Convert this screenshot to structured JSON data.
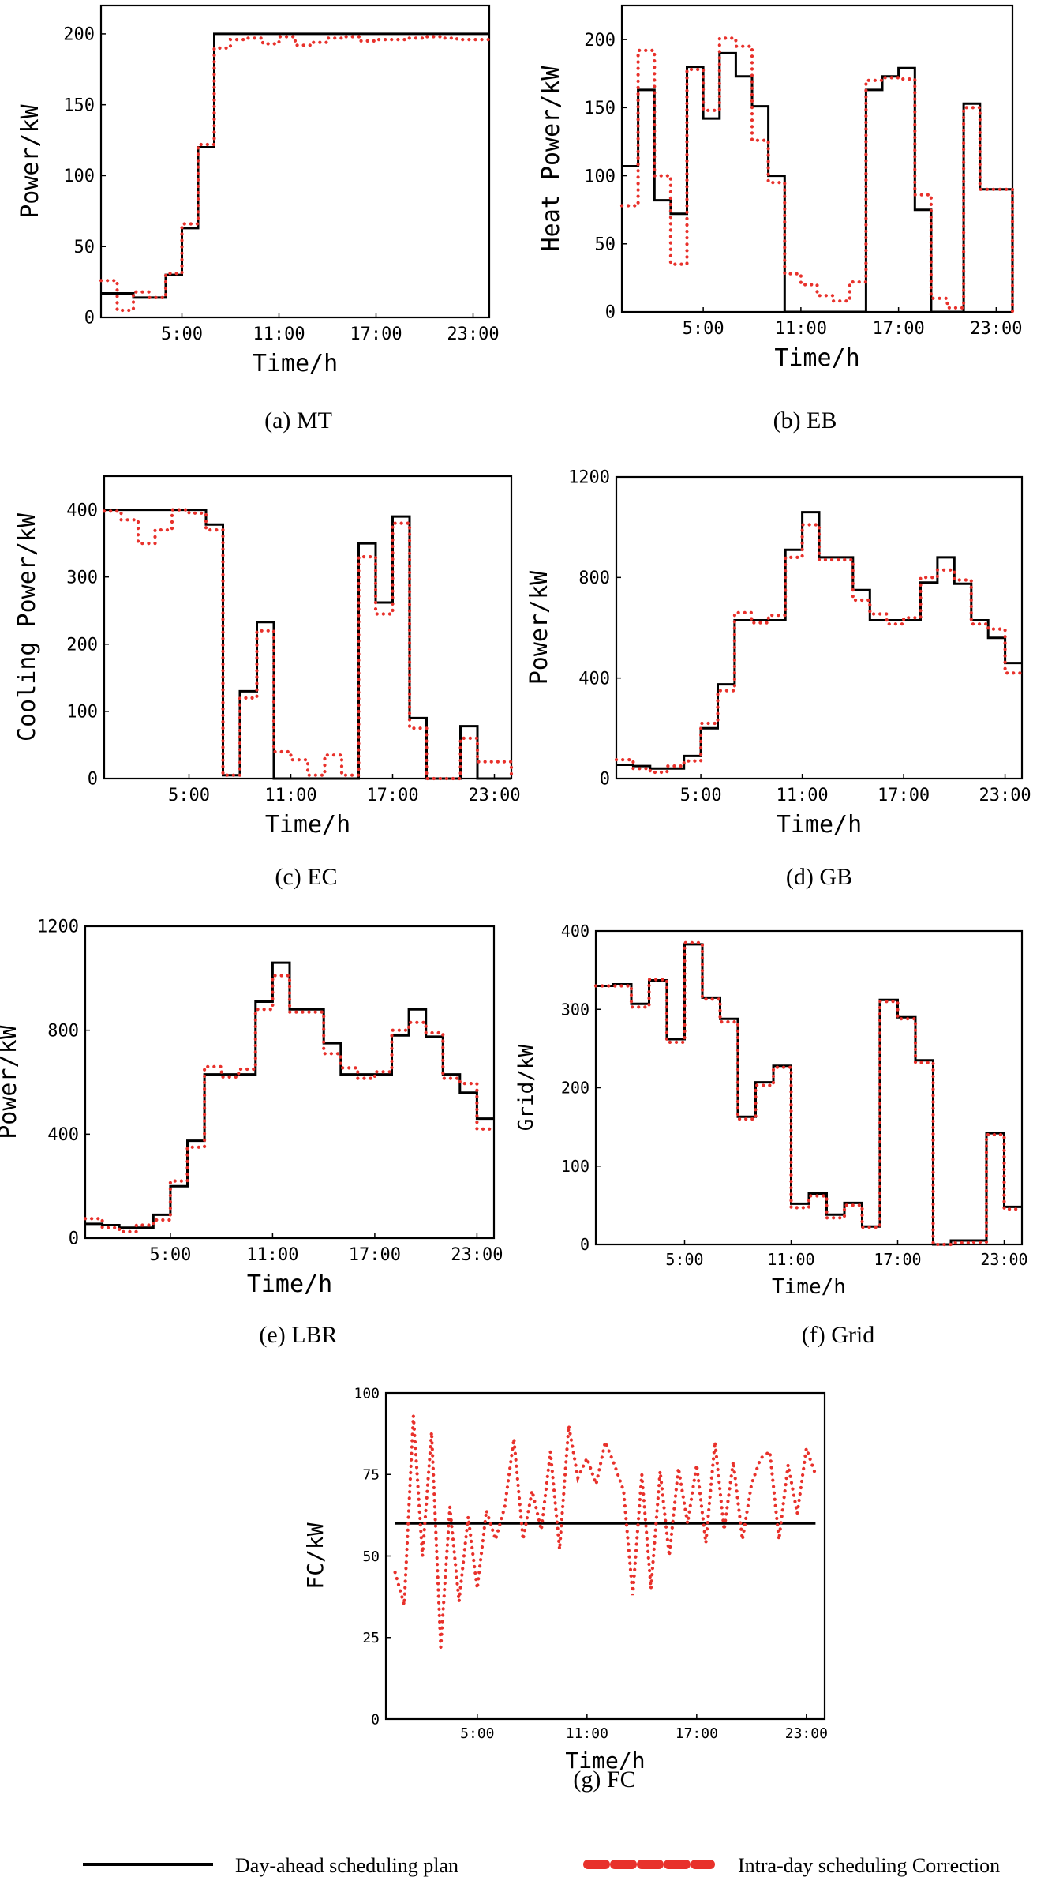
{
  "legend": {
    "plan": "Day-ahead scheduling plan",
    "correction": "Intra-day scheduling Correction"
  },
  "colors": {
    "plan": "#000000",
    "correction": "#e8312b"
  },
  "chart_data": [
    {
      "type": "line",
      "id": "a",
      "caption": "(a) MT",
      "xlabel": "Time/h",
      "ylabel": "Power/kW",
      "xlim": [
        0,
        24
      ],
      "ylim": [
        0,
        220
      ],
      "xticks": [
        5,
        11,
        17,
        23
      ],
      "xticklabels": [
        "5:00",
        "11:00",
        "17:00",
        "23:00"
      ],
      "yticks": [
        0,
        50,
        100,
        150,
        200
      ],
      "yticklabels": [
        "0",
        "50",
        "100",
        "150",
        "200"
      ],
      "series": [
        {
          "name": "Day-ahead scheduling plan",
          "values": [
            17,
            17,
            14,
            14,
            30,
            63,
            120,
            200,
            200,
            200,
            200,
            200,
            200,
            200,
            200,
            200,
            200,
            200,
            200,
            200,
            200,
            200,
            200,
            200
          ]
        },
        {
          "name": "Intra-day scheduling Correction",
          "values": [
            26,
            5,
            18,
            14,
            31,
            66,
            122,
            190,
            196,
            197,
            193,
            198,
            192,
            194,
            197,
            198,
            195,
            196,
            196,
            197,
            198,
            197,
            196,
            196
          ]
        }
      ]
    },
    {
      "type": "line",
      "id": "b",
      "caption": "(b) EB",
      "xlabel": "Time/h",
      "ylabel": "Heat Power/kW",
      "xlim": [
        0,
        24
      ],
      "ylim": [
        0,
        225
      ],
      "xticks": [
        5,
        11,
        17,
        23
      ],
      "xticklabels": [
        "5:00",
        "11:00",
        "17:00",
        "23:00"
      ],
      "yticks": [
        0,
        50,
        100,
        150,
        200
      ],
      "yticklabels": [
        "0",
        "50",
        "100",
        "150",
        "200"
      ],
      "series": [
        {
          "name": "Day-ahead scheduling plan",
          "values": [
            107,
            163,
            82,
            72,
            180,
            142,
            190,
            173,
            151,
            100,
            0,
            0,
            0,
            0,
            0,
            163,
            173,
            179,
            75,
            0,
            0,
            153,
            90,
            90
          ]
        },
        {
          "name": "Intra-day scheduling Correction",
          "values": [
            78,
            192,
            100,
            35,
            178,
            148,
            201,
            195,
            126,
            95,
            28,
            20,
            12,
            8,
            22,
            170,
            172,
            171,
            86,
            10,
            3,
            150,
            90,
            90
          ]
        }
      ]
    },
    {
      "type": "line",
      "id": "c",
      "caption": "(c) EC",
      "xlabel": "Time/h",
      "ylabel": "Cooling Power/kW",
      "xlim": [
        0,
        24
      ],
      "ylim": [
        0,
        450
      ],
      "xticks": [
        5,
        11,
        17,
        23
      ],
      "xticklabels": [
        "5:00",
        "11:00",
        "17:00",
        "23:00"
      ],
      "yticks": [
        0,
        100,
        200,
        300,
        400
      ],
      "yticklabels": [
        "0",
        "100",
        "200",
        "300",
        "400"
      ],
      "series": [
        {
          "name": "Day-ahead scheduling plan",
          "values": [
            400,
            400,
            400,
            400,
            400,
            400,
            378,
            5,
            130,
            233,
            0,
            0,
            0,
            0,
            0,
            350,
            262,
            390,
            90,
            0,
            0,
            78,
            0,
            0
          ]
        },
        {
          "name": "Intra-day scheduling Correction",
          "values": [
            398,
            385,
            350,
            370,
            400,
            395,
            370,
            5,
            120,
            220,
            40,
            28,
            5,
            35,
            5,
            330,
            245,
            380,
            75,
            0,
            0,
            60,
            25,
            25
          ]
        }
      ]
    },
    {
      "type": "line",
      "id": "d",
      "caption": "(d) GB",
      "xlabel": "Time/h",
      "ylabel": "Power/kW",
      "xlim": [
        0,
        24
      ],
      "ylim": [
        0,
        1200
      ],
      "xticks": [
        5,
        11,
        17,
        23
      ],
      "xticklabels": [
        "5:00",
        "11:00",
        "17:00",
        "23:00"
      ],
      "yticks": [
        0,
        400,
        800,
        1200
      ],
      "yticklabels": [
        "0",
        "400",
        "800",
        "1200"
      ],
      "series": [
        {
          "name": "Day-ahead scheduling plan",
          "values": [
            55,
            50,
            40,
            40,
            90,
            200,
            375,
            630,
            630,
            630,
            910,
            1060,
            880,
            880,
            750,
            630,
            630,
            630,
            780,
            880,
            775,
            630,
            560,
            460
          ]
        },
        {
          "name": "Intra-day scheduling Correction",
          "values": [
            75,
            40,
            25,
            50,
            70,
            220,
            350,
            660,
            620,
            650,
            880,
            1010,
            870,
            870,
            710,
            655,
            615,
            640,
            800,
            830,
            790,
            615,
            595,
            420
          ]
        }
      ]
    },
    {
      "type": "line",
      "id": "e",
      "caption": "(e) LBR",
      "xlabel": "Time/h",
      "ylabel": "Power/kW",
      "xlim": [
        0,
        24
      ],
      "ylim": [
        0,
        1200
      ],
      "xticks": [
        5,
        11,
        17,
        23
      ],
      "xticklabels": [
        "5:00",
        "11:00",
        "17:00",
        "23:00"
      ],
      "yticks": [
        0,
        400,
        800,
        1200
      ],
      "yticklabels": [
        "0",
        "400",
        "800",
        "1200"
      ],
      "series": [
        {
          "name": "Day-ahead scheduling plan",
          "values": [
            55,
            50,
            40,
            40,
            90,
            200,
            375,
            630,
            630,
            630,
            910,
            1060,
            880,
            880,
            750,
            630,
            630,
            630,
            780,
            880,
            775,
            630,
            560,
            460
          ]
        },
        {
          "name": "Intra-day scheduling Correction",
          "values": [
            75,
            40,
            25,
            50,
            70,
            220,
            350,
            660,
            620,
            650,
            880,
            1010,
            870,
            870,
            710,
            655,
            615,
            640,
            800,
            830,
            790,
            615,
            595,
            420
          ]
        }
      ]
    },
    {
      "type": "line",
      "id": "f",
      "caption": "(f) Grid",
      "xlabel": "Time/h",
      "ylabel": "Grid/kW",
      "xlim": [
        0,
        24
      ],
      "ylim": [
        0,
        400
      ],
      "xticks": [
        5,
        11,
        17,
        23
      ],
      "xticklabels": [
        "5:00",
        "11:00",
        "17:00",
        "23:00"
      ],
      "yticks": [
        0,
        100,
        200,
        300,
        400
      ],
      "yticklabels": [
        "0",
        "100",
        "200",
        "300",
        "400"
      ],
      "series": [
        {
          "name": "Day-ahead scheduling plan",
          "values": [
            330,
            332,
            307,
            337,
            262,
            383,
            315,
            288,
            163,
            207,
            228,
            52,
            65,
            38,
            53,
            23,
            312,
            290,
            235,
            0,
            5,
            5,
            142,
            48
          ]
        },
        {
          "name": "Intra-day scheduling Correction",
          "values": [
            330,
            330,
            303,
            338,
            258,
            385,
            313,
            284,
            160,
            203,
            226,
            47,
            62,
            34,
            50,
            22,
            310,
            288,
            232,
            0,
            2,
            3,
            140,
            45
          ]
        }
      ]
    },
    {
      "type": "line",
      "id": "g",
      "caption": "(g) FC",
      "xlabel": "Time/h",
      "ylabel": "FC/kW",
      "xlim": [
        0,
        24
      ],
      "ylim": [
        0,
        100
      ],
      "xticks": [
        5,
        11,
        17,
        23
      ],
      "xticklabels": [
        "5:00",
        "11:00",
        "17:00",
        "23:00"
      ],
      "yticks": [
        0,
        25,
        50,
        75,
        100
      ],
      "yticklabels": [
        "0",
        "25",
        "50",
        "75",
        "100"
      ],
      "series": [
        {
          "name": "Day-ahead scheduling plan",
          "x": [
            0.5,
            23.5
          ],
          "values": [
            60,
            60
          ]
        },
        {
          "name": "Intra-day scheduling Correction",
          "x": [
            0.5,
            1,
            1.5,
            2,
            2.5,
            3,
            3.5,
            4,
            4.5,
            5,
            5.5,
            6,
            6.5,
            7,
            7.5,
            8,
            8.5,
            9,
            9.5,
            10,
            10.5,
            11,
            11.5,
            12,
            12.5,
            13,
            13.5,
            14,
            14.5,
            15,
            15.5,
            16,
            16.5,
            17,
            17.5,
            18,
            18.5,
            19,
            19.5,
            20,
            20.5,
            21,
            21.5,
            22,
            22.5,
            23,
            23.5
          ],
          "values": [
            45,
            35,
            93,
            50,
            88,
            22,
            65,
            36,
            62,
            40,
            64,
            55,
            65,
            86,
            55,
            70,
            58,
            82,
            52,
            90,
            74,
            80,
            72,
            85,
            78,
            70,
            38,
            75,
            40,
            76,
            50,
            77,
            60,
            78,
            54,
            85,
            58,
            79,
            55,
            72,
            80,
            82,
            55,
            78,
            63,
            83,
            75
          ]
        }
      ]
    }
  ]
}
